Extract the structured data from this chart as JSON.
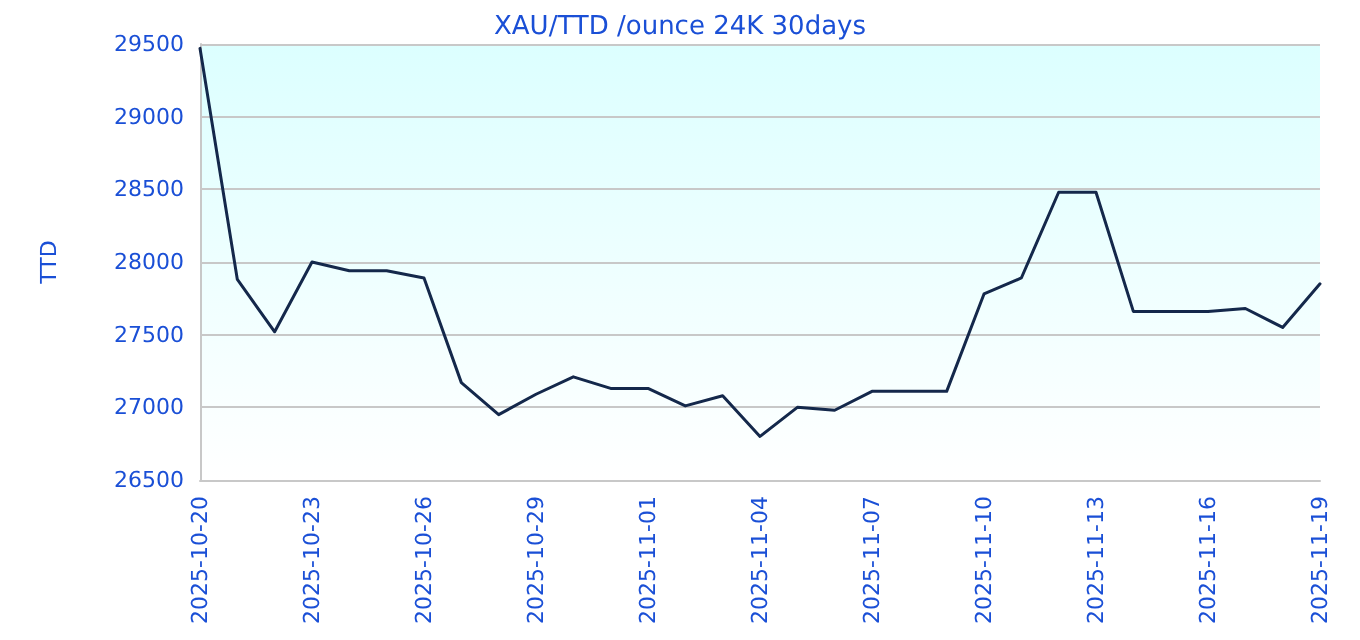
{
  "chart_data": {
    "type": "line",
    "title": "XAU/TTD /ounce 24K 30days",
    "ylabel": "TTD",
    "x": [
      "2025-10-20",
      "2025-10-21",
      "2025-10-22",
      "2025-10-23",
      "2025-10-24",
      "2025-10-25",
      "2025-10-26",
      "2025-10-27",
      "2025-10-28",
      "2025-10-29",
      "2025-10-30",
      "2025-10-31",
      "2025-11-01",
      "2025-11-02",
      "2025-11-03",
      "2025-11-04",
      "2025-11-05",
      "2025-11-06",
      "2025-11-07",
      "2025-11-08",
      "2025-11-09",
      "2025-11-10",
      "2025-11-11",
      "2025-11-12",
      "2025-11-13",
      "2025-11-14",
      "2025-11-15",
      "2025-11-16",
      "2025-11-17",
      "2025-11-18",
      "2025-11-19"
    ],
    "series": [
      {
        "color": "#14284b",
        "values": [
          29470,
          27880,
          27520,
          28000,
          27940,
          27940,
          27890,
          27170,
          26950,
          27090,
          27210,
          27130,
          27130,
          27010,
          27080,
          26800,
          27000,
          26980,
          27110,
          27110,
          27110,
          27780,
          27890,
          28480,
          28480,
          27660,
          27660,
          27660,
          27680,
          27550,
          27850
        ]
      }
    ],
    "xlim": [
      "2025-10-20",
      "2025-11-19"
    ],
    "xticks": [
      "2025-10-20",
      "2025-10-23",
      "2025-10-26",
      "2025-10-29",
      "2025-11-01",
      "2025-11-04",
      "2025-11-07",
      "2025-11-10",
      "2025-11-13",
      "2025-11-16",
      "2025-11-19"
    ],
    "ylim": [
      26500,
      29500
    ],
    "yticks": [
      26500,
      27000,
      27500,
      28000,
      28500,
      29000,
      29500
    ],
    "grid": "y",
    "marker": "none",
    "line_style": "solid"
  }
}
